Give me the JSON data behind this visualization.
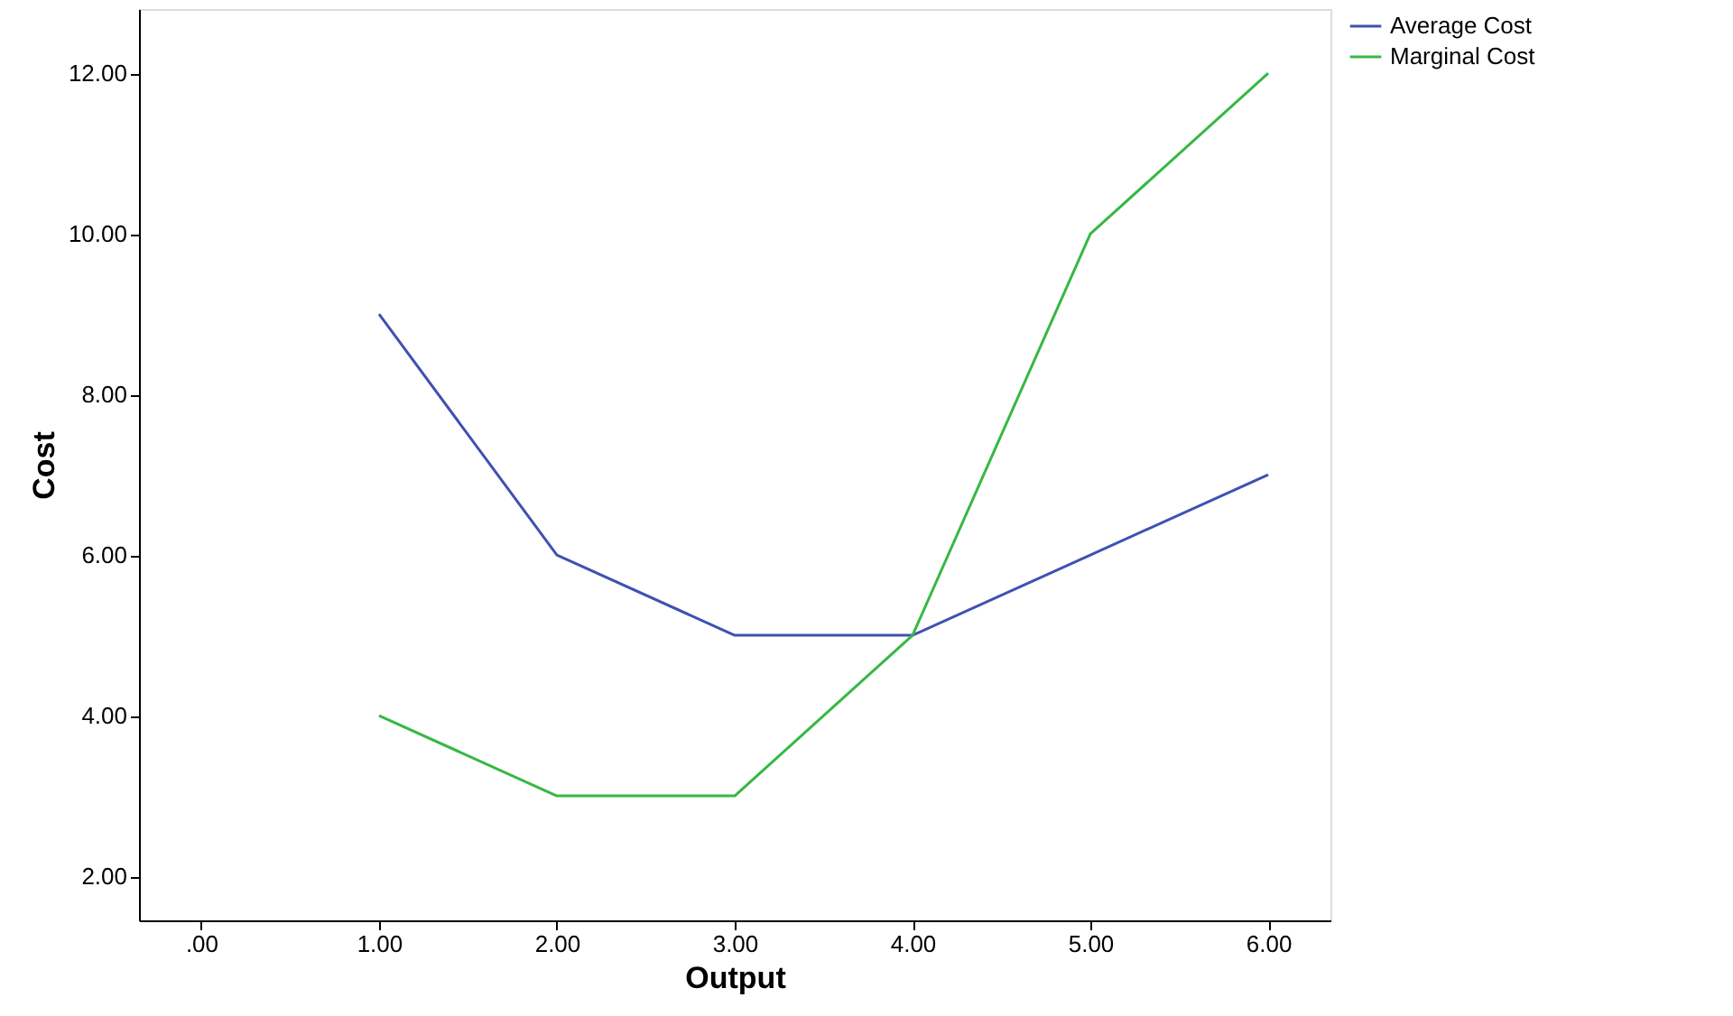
{
  "chart_data": {
    "type": "line",
    "xlabel": "Output",
    "ylabel": "Cost",
    "x": [
      1,
      2,
      3,
      4,
      5,
      6
    ],
    "series": [
      {
        "name": "Average Cost",
        "color": "#3f51b1",
        "values": [
          9,
          6,
          5,
          5,
          6,
          7
        ]
      },
      {
        "name": "Marginal Cost",
        "color": "#36b843",
        "values": [
          4,
          3,
          3,
          5,
          10,
          12
        ]
      }
    ],
    "xlim": [
      -0.35,
      6.35
    ],
    "xticks": [
      {
        "value": 0,
        "label": ".00"
      },
      {
        "value": 1,
        "label": "1.00"
      },
      {
        "value": 2,
        "label": "2.00"
      },
      {
        "value": 3,
        "label": "3.00"
      },
      {
        "value": 4,
        "label": "4.00"
      },
      {
        "value": 5,
        "label": "5.00"
      },
      {
        "value": 6,
        "label": "6.00"
      }
    ],
    "ylim": [
      1.45,
      12.8
    ],
    "yticks": [
      {
        "value": 2,
        "label": "2.00"
      },
      {
        "value": 4,
        "label": "4.00"
      },
      {
        "value": 6,
        "label": "6.00"
      },
      {
        "value": 8,
        "label": "8.00"
      },
      {
        "value": 10,
        "label": "10.00"
      },
      {
        "value": 12,
        "label": "12.00"
      }
    ],
    "grid": false,
    "legend": "top right",
    "marker": "none",
    "line_style": "solid"
  }
}
